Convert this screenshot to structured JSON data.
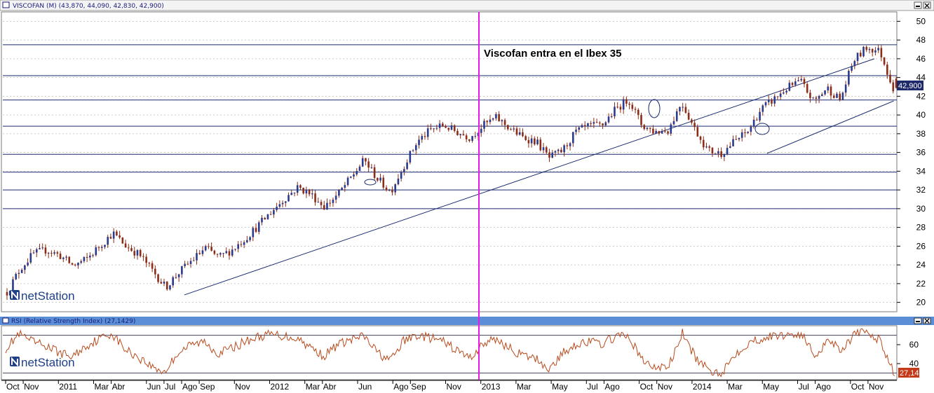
{
  "price_panel": {
    "title": "VISCOFAN (M) (43,870, 44,090, 42,830, 42,900)",
    "last_value_label": "42,900"
  },
  "rsi_panel": {
    "title": "RSI (Relative Strength Index) (27,1429)",
    "last_value_label": "27,14"
  },
  "annotation": "Viscofan entra en el Ibex 35",
  "logo_text": "netStation",
  "colors": {
    "price_candles": "#8b2d18",
    "rsi_line": "#b84a1c",
    "hlines": "#1a2a6e",
    "trendlines": "#1a2a6e",
    "event_line": "#e619e6",
    "panel_titlebar": "#5a8fd8",
    "background": "#ffffff"
  },
  "icons": [
    "minimize-icon",
    "close-icon"
  ],
  "chart_data": [
    {
      "type": "candlestick",
      "title": "VISCOFAN (M) (43,870, 44,090, 42,830, 42,900)",
      "ylim": [
        19,
        51
      ],
      "yticks": [
        20,
        22,
        24,
        26,
        28,
        30,
        32,
        34,
        36,
        38,
        40,
        42,
        44,
        46,
        48,
        50
      ],
      "grid": true,
      "x_labels": [
        "Oct",
        "Nov",
        "2011",
        "Mar",
        "Abr",
        "Jun",
        "Jul",
        "Ago",
        "Sep",
        "Nov",
        "2012",
        "Mar",
        "Abr",
        "Jun",
        "Ago",
        "Sep",
        "Nov",
        "2013",
        "Mar",
        "May",
        "Jul",
        "Ago",
        "Oct",
        "Nov",
        "2014",
        "Mar",
        "May",
        "Jul",
        "Ago",
        "Oct",
        "Nov"
      ],
      "horizontal_levels": [
        47.5,
        44.2,
        41.6,
        38.8,
        35.8,
        33.9,
        32.0,
        30.0
      ],
      "trendlines": [
        {
          "from": [
            "Ago 2011",
            20.8
          ],
          "to": [
            "Nov 2014",
            46.0
          ]
        },
        {
          "from": [
            "May 2014",
            35.9
          ],
          "to": [
            "Dic 2014",
            41.5
          ]
        }
      ],
      "event": {
        "label": "Viscofan entra en el Ibex 35",
        "x": "Ene 2013"
      },
      "last_value": 42.9,
      "last_candle": {
        "open": 43.87,
        "high": 44.09,
        "low": 42.83,
        "close": 42.9
      },
      "series": [
        {
          "values": [
            21.1,
            23.6,
            25.2,
            25.6,
            25.0,
            23.9,
            24.6,
            26.0,
            27.4,
            26.0,
            25.1,
            23.4,
            21.6,
            23.2,
            24.5,
            25.8,
            24.8,
            25.6,
            26.8,
            28.2,
            29.7,
            31.1,
            32.3,
            31.5,
            30.2,
            31.5,
            33.3,
            35.2,
            33.2,
            31.8,
            34.6,
            37.1,
            38.4,
            38.9,
            38.2,
            37.6,
            38.9,
            39.7,
            38.6,
            37.6,
            37.2,
            35.4,
            36.2,
            38.2,
            38.8,
            38.9,
            40.6,
            41.7,
            38.9,
            38.2,
            38.4,
            41.4,
            38.5,
            36.2,
            35.9,
            37.2,
            38.2,
            40.6,
            41.7,
            42.9,
            43.6,
            41.4,
            42.9,
            41.6,
            45.8,
            47.2,
            46.8,
            42.9
          ]
        }
      ]
    },
    {
      "type": "line",
      "title": "RSI (Relative Strength Index) (27,1429)",
      "ylim": [
        23,
        80
      ],
      "yticks": [
        40,
        60
      ],
      "reference_lines": [
        70,
        30
      ],
      "last_value": 27.14,
      "series": [
        {
          "values": [
            56,
            71,
            63,
            59,
            52,
            47,
            58,
            66,
            72,
            55,
            47,
            37,
            31,
            52,
            60,
            63,
            51,
            56,
            63,
            68,
            71,
            69,
            67,
            57,
            48,
            60,
            65,
            69,
            52,
            43,
            64,
            70,
            67,
            63,
            54,
            46,
            61,
            66,
            56,
            48,
            45,
            34,
            51,
            61,
            63,
            61,
            69,
            68,
            43,
            35,
            38,
            72,
            46,
            32,
            31,
            51,
            62,
            67,
            69,
            71,
            71,
            48,
            66,
            55,
            71,
            73,
            63,
            27
          ]
        }
      ]
    }
  ]
}
